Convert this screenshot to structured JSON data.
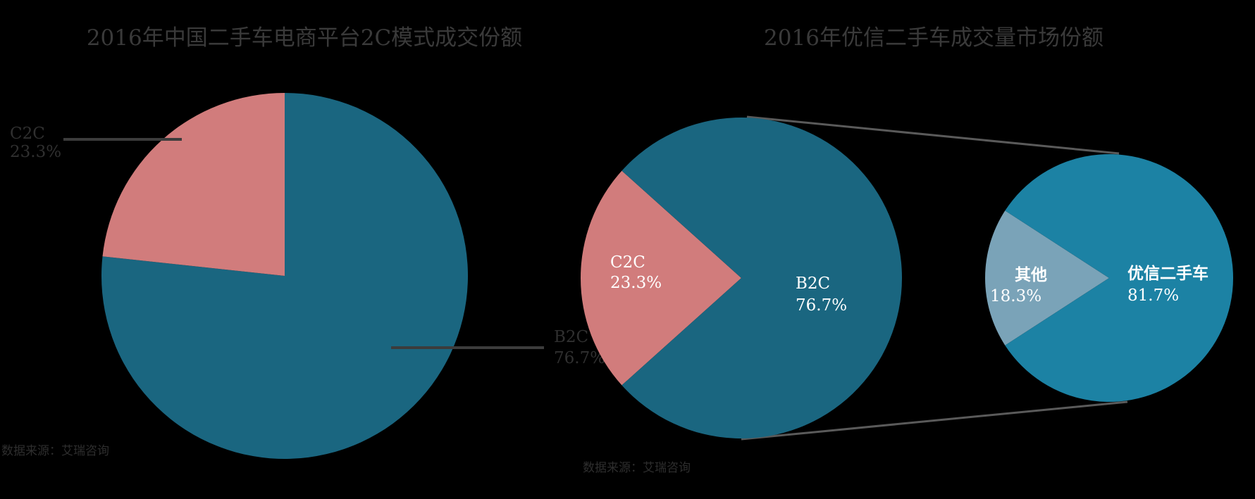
{
  "chart_data": [
    {
      "type": "pie",
      "title": "2016年中国二手车电商平台2C模式成交份额",
      "slices": [
        {
          "label": "C2C",
          "value": 23.3,
          "display": "23.3%",
          "color": "#d17c7c"
        },
        {
          "label": "B2C",
          "value": 76.7,
          "display": "76.7%",
          "color": "#1a6680"
        }
      ],
      "source": "数据来源：艾瑞咨询"
    },
    {
      "type": "pie",
      "title": "2016年优信二手车成交量市场份额",
      "slices": [
        {
          "label": "C2C",
          "value": 23.3,
          "display": "23.3%",
          "color": "#d17c7c"
        },
        {
          "label": "B2C",
          "value": 76.7,
          "display": "76.7%",
          "color": "#1a6680"
        }
      ],
      "breakdown": {
        "parent": "B2C",
        "slices": [
          {
            "label": "其他",
            "value": 18.3,
            "display": "18.3%",
            "color": "#7aa3b8"
          },
          {
            "label": "优信二手车",
            "value": 81.7,
            "display": "81.7%",
            "color": "#1c82a4"
          }
        ]
      },
      "source": "数据来源：艾瑞咨询"
    }
  ]
}
